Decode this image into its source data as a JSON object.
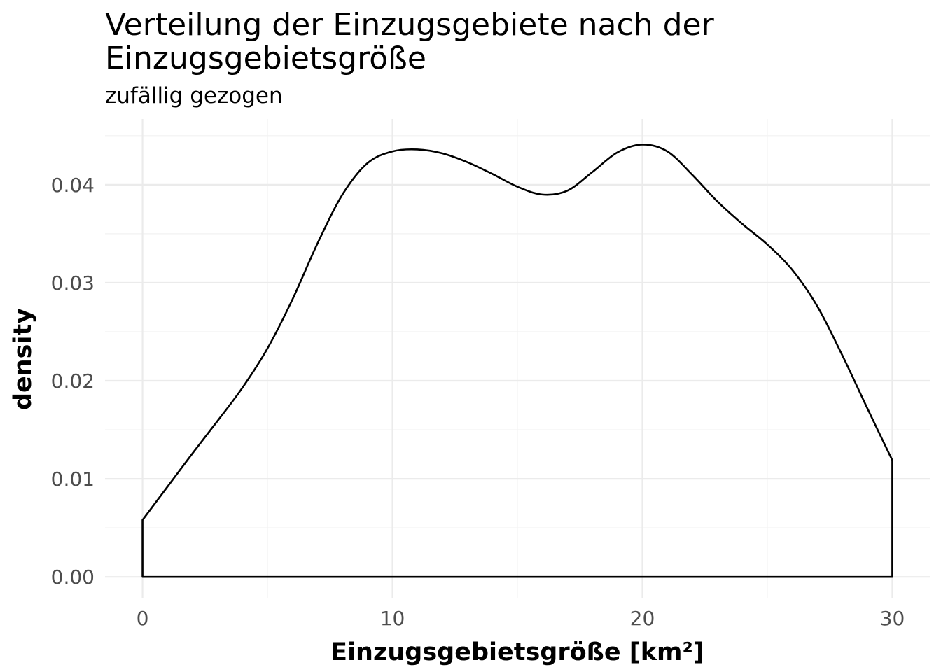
{
  "chart_data": {
    "type": "area",
    "title": "Verteilung der Einzugsgebiete nach der Einzugsgebietsgröße",
    "title_lines": [
      "Verteilung der Einzugsgebiete nach der",
      "Einzugsgebietsgröße"
    ],
    "subtitle": "zufällig gezogen",
    "xlabel": "Einzugsgebietsgröße [km²]",
    "ylabel": "density",
    "xlim": [
      -1.5,
      31.5
    ],
    "ylim": [
      -0.0022,
      0.0467
    ],
    "grid": true,
    "x_ticks": [
      0,
      10,
      20,
      30
    ],
    "x_tick_labels": [
      "0",
      "10",
      "20",
      "30"
    ],
    "x_minor_ticks": [
      5,
      15,
      25
    ],
    "y_ticks": [
      0.0,
      0.01,
      0.02,
      0.03,
      0.04
    ],
    "y_tick_labels": [
      "0.00",
      "0.01",
      "0.02",
      "0.03",
      "0.04"
    ],
    "y_minor_ticks": [
      0.005,
      0.015,
      0.025,
      0.035,
      0.045
    ],
    "line_color": "#000000",
    "fill": "none",
    "series": [
      {
        "x": [
          0,
          1,
          2,
          3,
          4,
          5,
          6,
          7,
          8,
          9,
          10,
          11,
          12,
          13,
          14,
          15,
          16,
          17,
          18,
          19,
          20,
          21,
          22,
          23,
          24,
          25,
          26,
          27,
          28,
          29,
          30
        ],
        "y": [
          0.0058,
          0.0092,
          0.0126,
          0.0159,
          0.0193,
          0.0233,
          0.0283,
          0.034,
          0.039,
          0.0422,
          0.0434,
          0.0436,
          0.0432,
          0.0423,
          0.0411,
          0.0398,
          0.039,
          0.0394,
          0.0413,
          0.0433,
          0.0441,
          0.0434,
          0.041,
          0.0383,
          0.036,
          0.0339,
          0.0313,
          0.0276,
          0.0226,
          0.0172,
          0.0119
        ]
      }
    ]
  }
}
